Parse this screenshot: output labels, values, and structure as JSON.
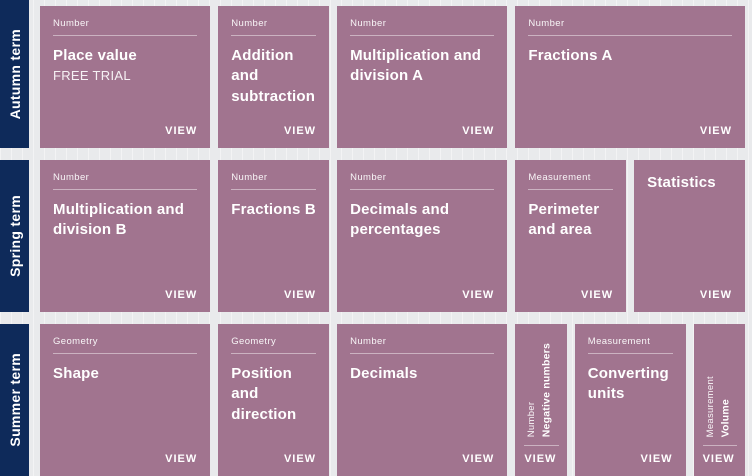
{
  "ui": {
    "view_label": "VIEW",
    "colors": {
      "card": "#a1748f",
      "term_bar": "#0e2a5a",
      "background": "#e9eaec",
      "text": "#ffffff"
    }
  },
  "terms": [
    {
      "label": "Autumn term",
      "cards": [
        {
          "category": "Number",
          "title": "Place value",
          "subtitle": "FREE TRIAL"
        },
        {
          "category": "Number",
          "title": "Addition and subtraction"
        },
        {
          "category": "Number",
          "title": "Multiplication and division A"
        },
        {
          "category": "Number",
          "title": "Fractions A"
        }
      ]
    },
    {
      "label": "Spring term",
      "cards": [
        {
          "category": "Number",
          "title": "Multiplication and division B"
        },
        {
          "category": "Number",
          "title": "Fractions B"
        },
        {
          "category": "Number",
          "title": "Decimals and percentages"
        },
        {
          "category": "Measurement",
          "title": "Perimeter and area"
        },
        {
          "category": "",
          "title": "Statistics"
        }
      ]
    },
    {
      "label": "Summer term",
      "cards": [
        {
          "category": "Geometry",
          "title": "Shape"
        },
        {
          "category": "Geometry",
          "title": "Position and direction"
        },
        {
          "category": "Number",
          "title": "Decimals"
        },
        {
          "category": "Number",
          "title": "Negative numbers"
        },
        {
          "category": "Measurement",
          "title": "Converting units"
        },
        {
          "category": "Measurement",
          "title": "Volume"
        }
      ]
    }
  ]
}
